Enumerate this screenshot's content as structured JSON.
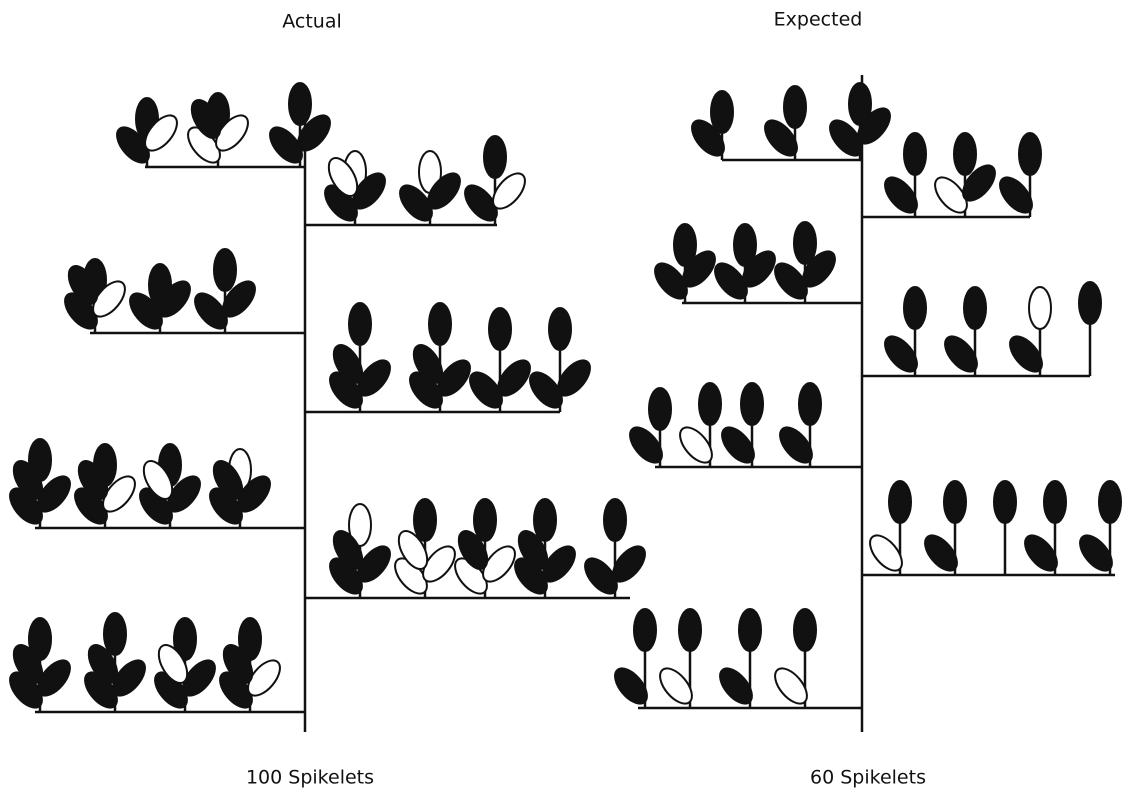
{
  "panels": [
    {
      "title": "Actual",
      "caption": "100 Spikelets"
    },
    {
      "title": "Expected",
      "caption": "60 Spikelets"
    }
  ]
}
